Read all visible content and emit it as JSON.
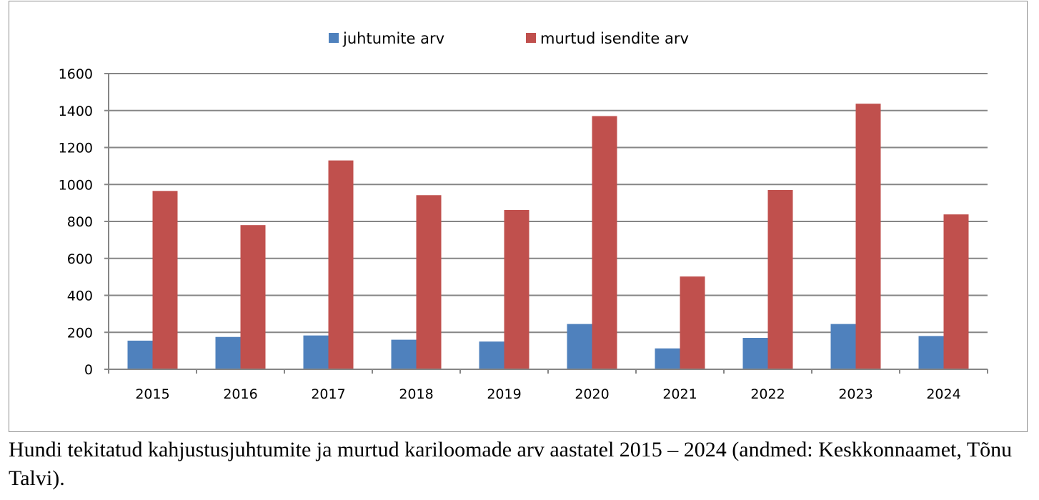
{
  "chart_data": {
    "type": "bar",
    "categories": [
      "2015",
      "2016",
      "2017",
      "2018",
      "2019",
      "2020",
      "2021",
      "2022",
      "2023",
      "2024"
    ],
    "series": [
      {
        "name": "juhtumite arv",
        "color": "#4f81bd",
        "values": [
          155,
          175,
          183,
          160,
          150,
          245,
          113,
          170,
          245,
          180
        ]
      },
      {
        "name": "murtud isendite arv",
        "color": "#c0504d",
        "values": [
          965,
          780,
          1130,
          942,
          862,
          1370,
          502,
          970,
          1437,
          838
        ]
      }
    ],
    "ylim": [
      0,
      1600
    ],
    "yticks": [
      "0",
      "200",
      "400",
      "600",
      "800",
      "1000",
      "1200",
      "1400",
      "1600"
    ],
    "grid": true,
    "legend_position": "top-center"
  },
  "caption": "Hundi tekitatud kahjustusjuhtumite ja murtud kariloomade arv aastatel 2015 – 2024 (andmed: Keskkonnaamet, Tõnu Talvi)."
}
